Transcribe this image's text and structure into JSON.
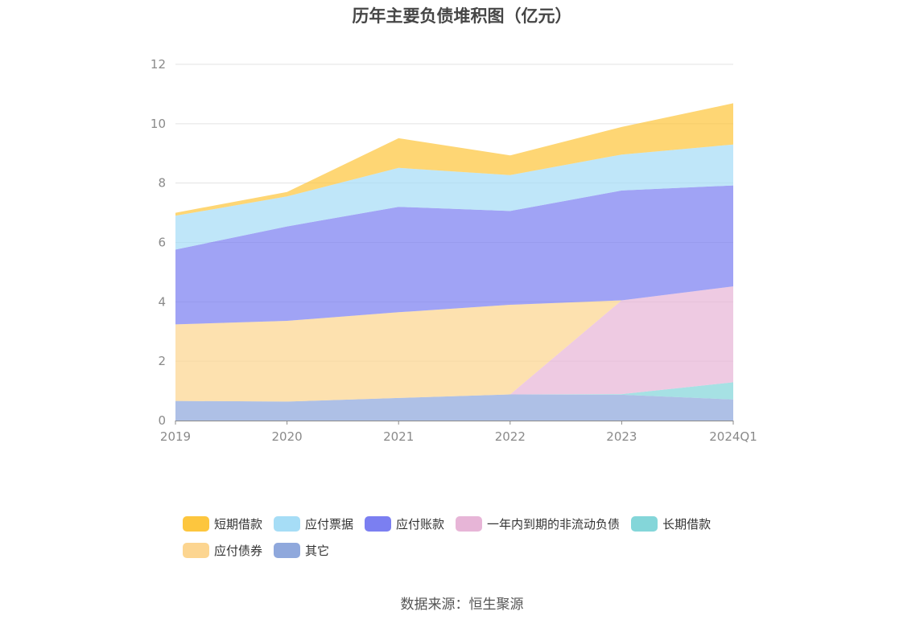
{
  "chart_data": {
    "type": "area",
    "stacked": true,
    "title": "历年主要负债堆积图（亿元）",
    "categories": [
      "2019",
      "2020",
      "2021",
      "2022",
      "2023",
      "2024Q1"
    ],
    "ylim": [
      0,
      12
    ],
    "yticks": [
      "0",
      "2",
      "4",
      "6",
      "8",
      "10",
      "12"
    ],
    "grid": true,
    "legend_position": "bottom",
    "series": [
      {
        "name": "其它",
        "color": "#8fa8dc",
        "values": [
          0.66,
          0.64,
          0.76,
          0.88,
          0.87,
          0.71
        ]
      },
      {
        "name": "长期借款",
        "color": "#84d6d9",
        "values": [
          0,
          0,
          0,
          0,
          0.02,
          0.58
        ]
      },
      {
        "name": "一年内到期的非流动负债",
        "color": "#e7b5d7",
        "values": [
          0,
          0,
          0,
          0,
          3.16,
          3.23
        ]
      },
      {
        "name": "应付债券",
        "color": "#fcd590",
        "values": [
          2.58,
          2.72,
          2.89,
          3.02,
          0,
          0
        ]
      },
      {
        "name": "应付账款",
        "color": "#7b7ff1",
        "values": [
          2.52,
          3.18,
          3.55,
          3.16,
          3.7,
          3.4
        ]
      },
      {
        "name": "应付票据",
        "color": "#a6ddf6",
        "values": [
          1.14,
          1.01,
          1.31,
          1.21,
          1.21,
          1.38
        ]
      },
      {
        "name": "短期借款",
        "color": "#fdc63e",
        "values": [
          0.1,
          0.15,
          1.0,
          0.66,
          0.93,
          1.39
        ]
      }
    ],
    "legend_order": [
      "短期借款",
      "应付票据",
      "应付账款",
      "一年内到期的非流动负债",
      "长期借款",
      "应付债券",
      "其它"
    ]
  },
  "source": "数据来源：恒生聚源"
}
